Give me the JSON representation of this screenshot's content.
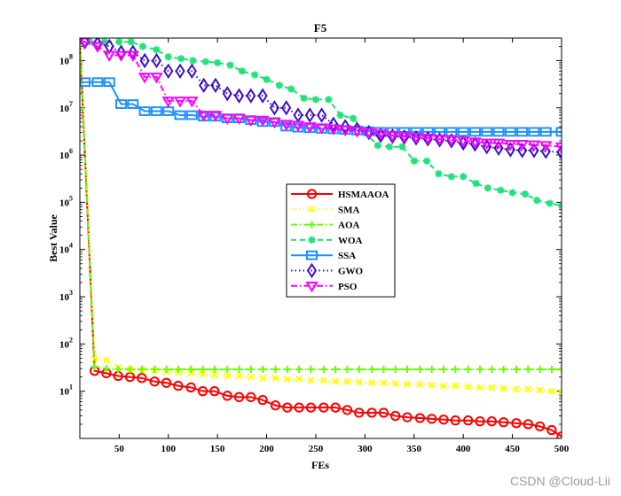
{
  "watermark": "CSDN @Cloud-Lii",
  "chart_data": {
    "type": "line",
    "title": "F5",
    "xlabel": "FEs",
    "ylabel": "Best Value",
    "x_scale": "linear",
    "y_scale": "log",
    "xlim": [
      10,
      500
    ],
    "ylim": [
      1,
      300000000
    ],
    "x_ticks": [
      50,
      100,
      150,
      200,
      250,
      300,
      350,
      400,
      450,
      500
    ],
    "x_tick_labels": [
      "50",
      "100",
      "150",
      "200",
      "250",
      "300",
      "350",
      "400",
      "450",
      "500"
    ],
    "y_ticks": [
      10,
      100,
      1000,
      10000,
      100000,
      1000000,
      10000000,
      100000000
    ],
    "y_tick_labels": [
      {
        "base": "10",
        "exp": "1"
      },
      {
        "base": "10",
        "exp": "2"
      },
      {
        "base": "10",
        "exp": "3"
      },
      {
        "base": "10",
        "exp": "4"
      },
      {
        "base": "10",
        "exp": "5"
      },
      {
        "base": "10",
        "exp": "6"
      },
      {
        "base": "10",
        "exp": "7"
      },
      {
        "base": "10",
        "exp": "8"
      }
    ],
    "legend_placement": "center",
    "grid": false,
    "series": [
      {
        "name": "HSMAAOA",
        "color": "#ff0000",
        "marker": "circle",
        "dash": "solid",
        "x": [
          10,
          25,
          37,
          49,
          61,
          73,
          86,
          98,
          110,
          123,
          135,
          147,
          160,
          172,
          184,
          196,
          209,
          221,
          233,
          245,
          258,
          270,
          282,
          294,
          307,
          319,
          331,
          343,
          356,
          368,
          380,
          392,
          405,
          417,
          429,
          441,
          454,
          466,
          478,
          490,
          500
        ],
        "y": [
          250000000,
          27,
          24,
          21,
          20,
          19,
          16,
          15,
          13,
          12,
          10,
          10,
          8,
          7.5,
          7.5,
          6.5,
          5,
          4.5,
          4.5,
          4.5,
          4.5,
          4.5,
          4,
          3.5,
          3.5,
          3.5,
          3,
          2.8,
          2.7,
          2.6,
          2.5,
          2.4,
          2.4,
          2.3,
          2.3,
          2.2,
          2.1,
          2,
          1.8,
          1.5,
          1.1
        ]
      },
      {
        "name": "SMA",
        "color": "#ffff00",
        "marker": "x",
        "dash": "dotted",
        "x": [
          10,
          25,
          37,
          49,
          61,
          73,
          86,
          98,
          110,
          123,
          135,
          147,
          160,
          172,
          184,
          196,
          209,
          221,
          233,
          245,
          258,
          270,
          282,
          294,
          307,
          319,
          331,
          343,
          356,
          368,
          380,
          392,
          405,
          417,
          429,
          441,
          454,
          466,
          478,
          490,
          500
        ],
        "y": [
          250000000,
          48,
          45,
          32,
          29,
          28,
          27,
          26,
          25,
          24,
          23,
          22,
          21,
          21,
          20,
          19,
          19,
          18,
          18,
          17,
          17,
          16,
          16,
          15.5,
          15,
          15,
          14.5,
          14,
          14,
          13.5,
          13,
          13,
          12.5,
          12,
          12,
          11.5,
          11,
          11,
          10.5,
          10,
          9.5
        ]
      },
      {
        "name": "AOA",
        "color": "#66ff00",
        "marker": "plus",
        "dash": "dashdot",
        "x": [
          10,
          25,
          37,
          49,
          61,
          73,
          86,
          98,
          110,
          123,
          135,
          147,
          160,
          172,
          184,
          196,
          209,
          221,
          233,
          245,
          258,
          270,
          282,
          294,
          307,
          319,
          331,
          343,
          356,
          368,
          380,
          392,
          405,
          417,
          429,
          441,
          454,
          466,
          478,
          490,
          500
        ],
        "y": [
          250000000,
          33,
          30,
          29,
          29,
          29,
          29,
          29,
          29,
          29,
          29,
          29,
          29,
          29,
          29,
          29,
          29,
          29,
          29,
          29,
          29,
          29,
          29,
          29,
          29,
          29,
          29,
          29,
          29,
          29,
          29,
          29,
          29,
          29,
          29,
          29,
          29,
          29,
          29,
          29,
          29
        ]
      },
      {
        "name": "WOA",
        "color": "#22e07a",
        "marker": "star",
        "dash": "dashed",
        "x": [
          10,
          20,
          35,
          50,
          62,
          74,
          88,
          100,
          113,
          125,
          138,
          150,
          163,
          175,
          188,
          200,
          213,
          225,
          238,
          250,
          263,
          275,
          288,
          300,
          313,
          325,
          338,
          350,
          363,
          375,
          388,
          400,
          413,
          425,
          438,
          450,
          463,
          475,
          488,
          500
        ],
        "y": [
          250000000,
          250000000,
          250000000,
          250000000,
          250000000,
          200000000,
          170000000,
          120000000,
          110000000,
          100000000,
          95000000,
          90000000,
          80000000,
          60000000,
          50000000,
          40000000,
          30000000,
          25000000,
          16000000,
          15000000,
          15000000,
          7000000,
          6000000,
          3000000,
          1600000,
          1500000,
          1500000,
          750000,
          750000,
          400000,
          350000,
          350000,
          250000,
          200000,
          180000,
          160000,
          150000,
          110000,
          95000,
          85000
        ]
      },
      {
        "name": "SSA",
        "color": "#1e90ff",
        "marker": "square",
        "dash": "solid",
        "x": [
          10,
          15,
          28,
          40,
          52,
          64,
          76,
          88,
          100,
          112,
          124,
          136,
          148,
          160,
          172,
          184,
          196,
          208,
          220,
          232,
          244,
          256,
          268,
          280,
          292,
          304,
          316,
          328,
          340,
          352,
          364,
          376,
          388,
          400,
          412,
          424,
          436,
          448,
          460,
          472,
          484,
          500
        ],
        "y": [
          35000000,
          35000000,
          35000000,
          35000000,
          12000000,
          12000000,
          8500000,
          8500000,
          8500000,
          7000000,
          7000000,
          6500000,
          6500000,
          6000000,
          6000000,
          5500000,
          5000000,
          5000000,
          4000000,
          3800000,
          3700000,
          3600000,
          3500000,
          3400000,
          3300000,
          3200000,
          3100000,
          3100000,
          3100000,
          3100000,
          3100000,
          3100000,
          3100000,
          3100000,
          3100000,
          3100000,
          3100000,
          3100000,
          3100000,
          3100000,
          3100000,
          3100000
        ]
      },
      {
        "name": "GWO",
        "color": "#3d10c8",
        "marker": "diamond",
        "dash": "dotted",
        "x": [
          10,
          15,
          28,
          40,
          52,
          64,
          76,
          88,
          100,
          112,
          124,
          136,
          148,
          160,
          172,
          184,
          196,
          208,
          220,
          232,
          244,
          256,
          268,
          280,
          292,
          304,
          316,
          328,
          340,
          352,
          364,
          376,
          388,
          400,
          412,
          424,
          436,
          448,
          460,
          472,
          484,
          500
        ],
        "y": [
          250000000,
          250000000,
          230000000,
          200000000,
          150000000,
          150000000,
          100000000,
          100000000,
          60000000,
          60000000,
          60000000,
          30000000,
          30000000,
          20000000,
          18000000,
          18000000,
          18000000,
          10000000,
          10000000,
          7000000,
          7000000,
          7000000,
          4500000,
          4000000,
          3500000,
          3000000,
          2600000,
          2500000,
          2400000,
          2300000,
          2200000,
          2100000,
          2000000,
          1800000,
          1700000,
          1500000,
          1400000,
          1300000,
          1250000,
          1250000,
          1200000,
          1150000
        ]
      },
      {
        "name": "PSO",
        "color": "#ff00ff",
        "marker": "triangle-down",
        "dash": "dashdot",
        "x": [
          10,
          15,
          28,
          40,
          52,
          64,
          76,
          88,
          100,
          112,
          124,
          136,
          148,
          160,
          172,
          184,
          196,
          208,
          220,
          232,
          244,
          256,
          268,
          280,
          292,
          304,
          316,
          328,
          340,
          352,
          364,
          376,
          388,
          400,
          412,
          424,
          436,
          448,
          460,
          472,
          484,
          500
        ],
        "y": [
          250000000,
          250000000,
          200000000,
          130000000,
          130000000,
          130000000,
          45000000,
          45000000,
          14000000,
          14000000,
          14000000,
          7000000,
          7000000,
          6000000,
          6000000,
          5500000,
          5500000,
          5000000,
          4500000,
          4300000,
          4000000,
          3800000,
          3600000,
          3400000,
          3200000,
          3000000,
          2800000,
          2600000,
          2500000,
          2400000,
          2300000,
          2200000,
          2100000,
          2000000,
          1900000,
          1800000,
          1800000,
          1700000,
          1700000,
          1650000,
          1600000,
          1500000
        ]
      }
    ]
  }
}
